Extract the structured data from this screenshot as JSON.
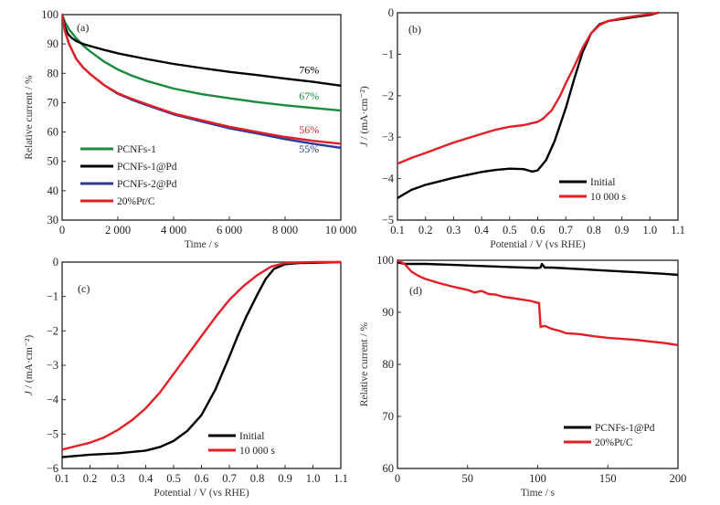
{
  "chart_data": [
    {
      "id": "a",
      "type": "line",
      "panel_label": "(a)",
      "title": "",
      "xlabel": "Time / s",
      "ylabel": "Relative current / %",
      "xlim": [
        0,
        10000
      ],
      "ylim": [
        30,
        100
      ],
      "xticks": [
        0,
        2000,
        4000,
        6000,
        8000,
        10000
      ],
      "xtick_labels": [
        "0",
        "2 000",
        "4 000",
        "6 000",
        "8 000",
        "10 000"
      ],
      "yticks": [
        30,
        40,
        50,
        60,
        70,
        80,
        90,
        100
      ],
      "ytick_labels": [
        "30",
        "40",
        "50",
        "60",
        "70",
        "80",
        "90",
        "100"
      ],
      "grid": false,
      "legend_position": "lower-left",
      "series": [
        {
          "name": "PCNFs-1",
          "color": "#1a8a3c",
          "x": [
            0,
            100,
            250,
            500,
            750,
            1000,
            1500,
            2000,
            2500,
            3000,
            4000,
            5000,
            6000,
            7000,
            8000,
            9000,
            10000
          ],
          "y": [
            100,
            97.5,
            95,
            92,
            89.5,
            87.5,
            84,
            81.3,
            79.2,
            77.5,
            74.8,
            72.9,
            71.5,
            70.2,
            69.1,
            68.2,
            67.3
          ]
        },
        {
          "name": "PCNFs-1@Pd",
          "color": "#000000",
          "x": [
            0,
            100,
            200,
            350,
            500,
            750,
            1000,
            1500,
            2000,
            3000,
            4000,
            5000,
            6000,
            7000,
            8000,
            9000,
            10000
          ],
          "y": [
            100,
            96,
            93.5,
            92,
            91,
            90,
            89.3,
            88,
            86.8,
            84.9,
            83.2,
            81.8,
            80.5,
            79.4,
            78.2,
            77.1,
            75.8
          ]
        },
        {
          "name": "PCNFs-2@Pd",
          "color": "#2a3a9c",
          "x": [
            0,
            100,
            250,
            500,
            750,
            1000,
            1500,
            2000,
            2500,
            3000,
            4000,
            5000,
            6000,
            7000,
            8000,
            9000,
            10000
          ],
          "y": [
            100,
            94.5,
            90,
            85,
            82,
            79.8,
            76,
            73,
            71,
            69.3,
            66,
            63.6,
            61.3,
            59.5,
            57.6,
            56,
            54.6
          ]
        },
        {
          "name": "20%Pt/C",
          "color": "#e41e26",
          "x": [
            0,
            100,
            250,
            500,
            750,
            1000,
            1500,
            2000,
            2500,
            3000,
            4000,
            5000,
            6000,
            7000,
            8000,
            9000,
            10000
          ],
          "y": [
            100,
            94.5,
            90,
            85,
            82,
            79.8,
            76,
            73.2,
            71.3,
            69.6,
            66.3,
            64,
            61.8,
            60,
            58.3,
            57,
            56
          ]
        }
      ],
      "annotations": [
        {
          "text": "76%",
          "x": 8500,
          "y": 80,
          "color": "#000000"
        },
        {
          "text": "67%",
          "x": 8500,
          "y": 71,
          "color": "#1a8a3c"
        },
        {
          "text": "56%",
          "x": 8500,
          "y": 59.5,
          "color": "#e41e26"
        },
        {
          "text": "55%",
          "x": 8500,
          "y": 53,
          "color": "#2a3a9c"
        }
      ]
    },
    {
      "id": "b",
      "type": "line",
      "panel_label": "(b)",
      "title": "",
      "xlabel": "Potential / V (vs RHE)",
      "ylabel": "J / (mA·cm⁻²)",
      "xlim": [
        0.1,
        1.1
      ],
      "ylim": [
        -5,
        0
      ],
      "xticks": [
        0.1,
        0.2,
        0.3,
        0.4,
        0.5,
        0.6,
        0.7,
        0.8,
        0.9,
        1.0,
        1.1
      ],
      "xtick_labels": [
        "0.1",
        "0.2",
        "0.3",
        "0.4",
        "0.5",
        "0.6",
        "0.7",
        "0.8",
        "0.9",
        "1.0",
        "1.1"
      ],
      "yticks": [
        -5,
        -4,
        -3,
        -2,
        -1,
        0
      ],
      "ytick_labels": [
        "−5",
        "−4",
        "−3",
        "−2",
        "−1",
        "0"
      ],
      "grid": false,
      "legend_position": "lower-right",
      "series": [
        {
          "name": "Initial",
          "color": "#000000",
          "x": [
            0.1,
            0.15,
            0.2,
            0.3,
            0.4,
            0.45,
            0.5,
            0.55,
            0.58,
            0.6,
            0.63,
            0.66,
            0.7,
            0.73,
            0.76,
            0.79,
            0.82,
            0.85,
            0.9,
            0.95,
            1.0,
            1.03
          ],
          "y": [
            -4.47,
            -4.27,
            -4.15,
            -3.98,
            -3.84,
            -3.79,
            -3.76,
            -3.77,
            -3.83,
            -3.8,
            -3.55,
            -3.1,
            -2.3,
            -1.6,
            -0.95,
            -0.5,
            -0.28,
            -0.2,
            -0.15,
            -0.1,
            -0.05,
            0
          ]
        },
        {
          "name": "10 000 s",
          "color": "#e41e26",
          "x": [
            0.1,
            0.15,
            0.2,
            0.3,
            0.4,
            0.45,
            0.5,
            0.55,
            0.6,
            0.62,
            0.65,
            0.68,
            0.7,
            0.73,
            0.76,
            0.79,
            0.82,
            0.85,
            0.9,
            0.95,
            1.0,
            1.03
          ],
          "y": [
            -3.64,
            -3.5,
            -3.38,
            -3.13,
            -2.92,
            -2.82,
            -2.75,
            -2.71,
            -2.63,
            -2.55,
            -2.35,
            -2.0,
            -1.7,
            -1.3,
            -0.85,
            -0.5,
            -0.3,
            -0.2,
            -0.13,
            -0.08,
            -0.03,
            0
          ]
        }
      ]
    },
    {
      "id": "c",
      "type": "line",
      "panel_label": "(c)",
      "title": "",
      "xlabel": "Potential / V (vs RHE)",
      "ylabel": "J / (mA·cm⁻²)",
      "xlim": [
        0.1,
        1.1
      ],
      "ylim": [
        -6,
        0
      ],
      "xticks": [
        0.1,
        0.2,
        0.3,
        0.4,
        0.5,
        0.6,
        0.7,
        0.8,
        0.9,
        1.0,
        1.1
      ],
      "xtick_labels": [
        "0.1",
        "0.2",
        "0.3",
        "0.4",
        "0.5",
        "0.6",
        "0.7",
        "0.8",
        "0.9",
        "1.0",
        "1.1"
      ],
      "yticks": [
        -6,
        -5,
        -4,
        -3,
        -2,
        -1,
        0
      ],
      "ytick_labels": [
        "−6",
        "−5",
        "−4",
        "−3",
        "−2",
        "−1",
        "0"
      ],
      "grid": false,
      "legend_position": "lower-right",
      "series": [
        {
          "name": "Initial",
          "color": "#000000",
          "x": [
            0.1,
            0.2,
            0.3,
            0.4,
            0.45,
            0.5,
            0.55,
            0.6,
            0.65,
            0.7,
            0.73,
            0.76,
            0.8,
            0.83,
            0.86,
            0.9,
            0.95,
            1.0,
            1.1
          ],
          "y": [
            -5.67,
            -5.6,
            -5.56,
            -5.48,
            -5.38,
            -5.2,
            -4.9,
            -4.45,
            -3.7,
            -2.75,
            -2.15,
            -1.6,
            -0.95,
            -0.5,
            -0.2,
            -0.06,
            -0.03,
            -0.02,
            0
          ]
        },
        {
          "name": "10 000 s",
          "color": "#e41e26",
          "x": [
            0.1,
            0.15,
            0.2,
            0.25,
            0.3,
            0.35,
            0.4,
            0.45,
            0.5,
            0.55,
            0.6,
            0.65,
            0.7,
            0.75,
            0.8,
            0.85,
            0.9,
            0.95,
            1.0,
            1.1
          ],
          "y": [
            -5.45,
            -5.35,
            -5.25,
            -5.1,
            -4.88,
            -4.6,
            -4.25,
            -3.8,
            -3.25,
            -2.7,
            -2.15,
            -1.6,
            -1.1,
            -0.7,
            -0.38,
            -0.13,
            -0.03,
            -0.01,
            0,
            0
          ]
        }
      ]
    },
    {
      "id": "d",
      "type": "line",
      "panel_label": "(d)",
      "title": "",
      "xlabel": "Time / s",
      "ylabel": "Relative current / %",
      "xlim": [
        0,
        200
      ],
      "ylim": [
        60,
        100
      ],
      "xticks": [
        0,
        50,
        100,
        150,
        200
      ],
      "xtick_labels": [
        "0",
        "50",
        "100",
        "150",
        "200"
      ],
      "yticks": [
        60,
        70,
        80,
        90,
        100
      ],
      "ytick_labels": [
        "60",
        "70",
        "80",
        "90",
        "100"
      ],
      "grid": false,
      "legend_position": "lower-right",
      "series": [
        {
          "name": "PCNFs-1@Pd",
          "color": "#000000",
          "x": [
            0,
            5,
            20,
            40,
            60,
            80,
            100,
            102,
            103,
            105,
            110,
            130,
            150,
            170,
            190,
            200
          ],
          "y": [
            99.6,
            99.3,
            99.3,
            99.1,
            98.9,
            98.7,
            98.5,
            98.6,
            99.3,
            98.6,
            98.6,
            98.3,
            98.0,
            97.7,
            97.4,
            97.2
          ]
        },
        {
          "name": "20%Pt/C",
          "color": "#e41e26",
          "x": [
            0,
            5,
            10,
            15,
            20,
            30,
            40,
            50,
            55,
            60,
            65,
            70,
            75,
            80,
            90,
            95,
            100,
            101,
            102,
            105,
            110,
            115,
            120,
            130,
            140,
            150,
            160,
            170,
            180,
            190,
            200
          ],
          "y": [
            100,
            99.3,
            97.8,
            97.0,
            96.4,
            95.6,
            94.9,
            94.3,
            93.8,
            94.1,
            93.5,
            93.4,
            93.0,
            92.8,
            92.4,
            92.2,
            91.8,
            91.8,
            87.2,
            87.4,
            86.8,
            86.5,
            86.0,
            85.8,
            85.4,
            85.1,
            84.9,
            84.7,
            84.4,
            84.1,
            83.7
          ]
        }
      ]
    }
  ]
}
